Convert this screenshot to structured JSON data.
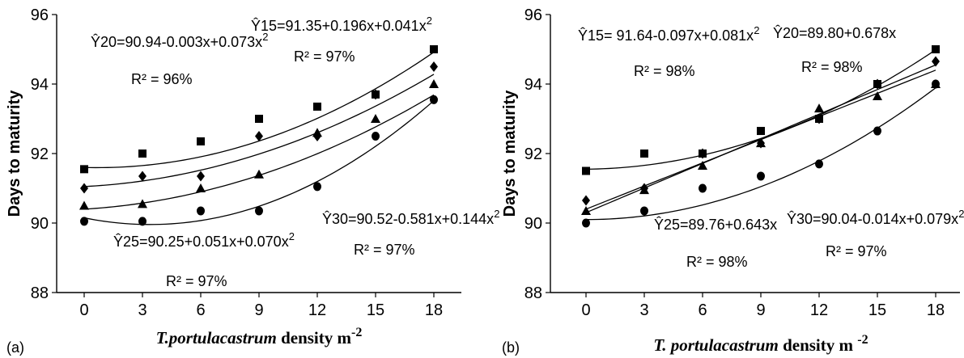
{
  "chart_data": [
    {
      "panel": "(a)",
      "type": "scatter",
      "ylabel": "Days to maturity",
      "xlabel": {
        "italic": "T.portulacastrum",
        "rest": " density m",
        "sup": "-2"
      },
      "xlim": [
        0,
        18
      ],
      "ylim": [
        88,
        96
      ],
      "x_ticks": [
        0,
        3,
        6,
        9,
        12,
        15,
        18
      ],
      "y_ticks": [
        88,
        90,
        92,
        94,
        96
      ],
      "series": [
        {
          "marker": "square",
          "x": [
            0,
            3,
            6,
            9,
            12,
            15,
            18
          ],
          "y": [
            91.55,
            92.0,
            92.35,
            93.0,
            93.35,
            93.7,
            95.0
          ],
          "fit": {
            "a": 91.6,
            "b": -0.0155,
            "c": 0.0111
          },
          "equation": "Ŷ20=90.94-0.003x+0.073x",
          "eq_sup": "2",
          "r2_label": "R² = 96%"
        },
        {
          "marker": "diamond",
          "x": [
            0,
            3,
            6,
            9,
            12,
            15,
            18
          ],
          "y": [
            91.0,
            91.35,
            91.35,
            92.5,
            92.5,
            93.7,
            94.5
          ],
          "fit": {
            "a": 91.05,
            "b": 0.0283,
            "c": 0.0084
          },
          "equation": "Ŷ15=91.35+0.196x+0.041x",
          "eq_sup": "2",
          "r2_label": "R² = 97%"
        },
        {
          "marker": "triangle",
          "x": [
            0,
            3,
            6,
            9,
            12,
            15,
            18
          ],
          "y": [
            90.5,
            90.55,
            91.0,
            91.4,
            92.6,
            93.0,
            94.0
          ],
          "fit": {
            "a": 90.4,
            "b": 0.0333,
            "c": 0.0083
          },
          "equation": "Ŷ25=90.25+0.051x+0.070x",
          "eq_sup": "2",
          "r2_label": "R² = 97%"
        },
        {
          "marker": "circle",
          "x": [
            0,
            3,
            6,
            9,
            12,
            15,
            18
          ],
          "y": [
            90.05,
            90.05,
            90.35,
            90.35,
            91.05,
            92.5,
            93.55
          ],
          "fit": {
            "a": 90.15,
            "b": -0.1133,
            "c": 0.0167
          },
          "equation": "Ŷ30=90.52-0.581x+0.144x",
          "eq_sup": "2",
          "r2_label": "R² = 97%"
        }
      ]
    },
    {
      "panel": "(b)",
      "type": "scatter",
      "ylabel": "Days to maturity",
      "xlabel": {
        "italic": "T. portulacastrum",
        "rest": " density m ",
        "sup": "-2"
      },
      "xlim": [
        0,
        18
      ],
      "ylim": [
        88,
        96
      ],
      "x_ticks": [
        0,
        3,
        6,
        9,
        12,
        15,
        18
      ],
      "y_ticks": [
        88,
        90,
        92,
        94,
        96
      ],
      "series": [
        {
          "marker": "square",
          "x": [
            0,
            3,
            6,
            9,
            12,
            15,
            18
          ],
          "y": [
            91.5,
            92.0,
            92.0,
            92.65,
            93.0,
            94.0,
            95.0
          ],
          "fit": {
            "a": 91.55,
            "b": 0.0055,
            "c": 0.0103
          },
          "equation": "Ŷ15= 91.64-0.097x+0.081x",
          "eq_sup": "2",
          "r2_label": "R² = 98%"
        },
        {
          "marker": "diamond",
          "x": [
            0,
            3,
            6,
            9,
            12,
            15,
            18
          ],
          "y": [
            90.65,
            91.0,
            92.0,
            92.3,
            93.0,
            94.0,
            94.65
          ],
          "fit": {
            "a": 90.3,
            "b": 0.2361,
            "c": 0.0
          },
          "equation": "Ŷ20=89.80+0.678x",
          "eq_sup": "",
          "r2_label": "R² = 98%"
        },
        {
          "marker": "triangle",
          "x": [
            0,
            3,
            6,
            9,
            12,
            15,
            18
          ],
          "y": [
            90.35,
            90.95,
            91.65,
            92.3,
            93.3,
            93.65,
            94.0
          ],
          "fit": {
            "a": 90.4,
            "b": 0.2222,
            "c": 0.0
          },
          "equation": "Ŷ25=89.76+0.643x",
          "eq_sup": "",
          "r2_label": "R² = 98%"
        },
        {
          "marker": "circle",
          "x": [
            0,
            3,
            6,
            9,
            12,
            15,
            18
          ],
          "y": [
            90.0,
            90.35,
            91.0,
            91.35,
            91.7,
            92.65,
            94.0
          ],
          "fit": {
            "a": 90.1,
            "b": 0.0,
            "c": 0.0117
          },
          "equation": "Ŷ30=90.04-0.014x+0.079x",
          "eq_sup": "2",
          "r2_label": "R² = 97%"
        }
      ]
    }
  ]
}
